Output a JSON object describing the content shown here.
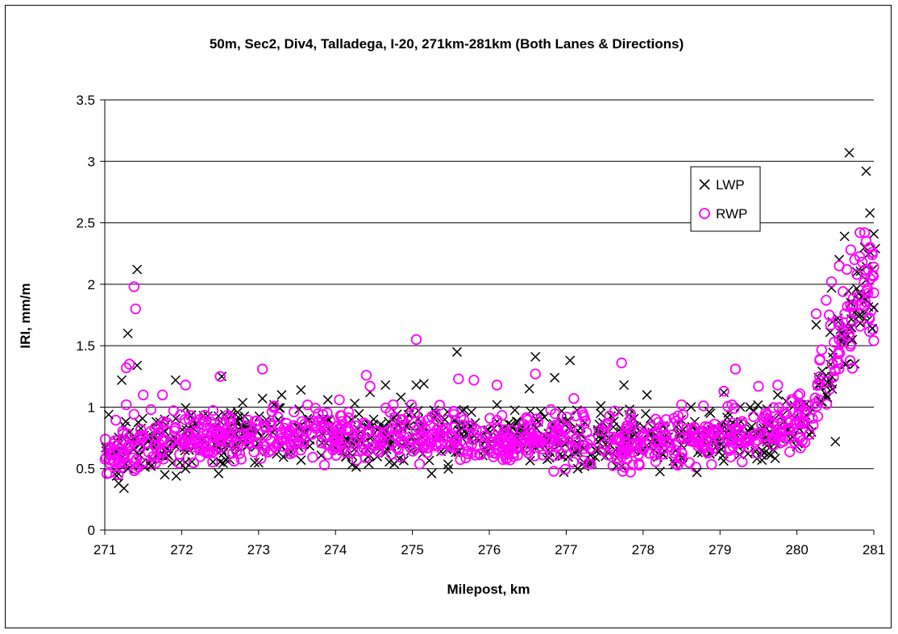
{
  "chart_data": {
    "type": "scatter",
    "title": "50m, Sec2, Div4, Talladega, I-20, 271km-281km (Both Lanes & Directions)",
    "xlabel": "Milepost, km",
    "ylabel": "IRI, mm/m",
    "xlim": [
      271,
      281
    ],
    "ylim": [
      0,
      3.5
    ],
    "x_ticks": [
      "271",
      "272",
      "273",
      "274",
      "275",
      "276",
      "277",
      "278",
      "279",
      "280",
      "281"
    ],
    "y_ticks": [
      "0",
      "0.5",
      "1",
      "1.5",
      "2",
      "2.5",
      "3",
      "3.5"
    ],
    "grid": "horizontal",
    "legend_position": "top-right",
    "series": [
      {
        "name": "LWP",
        "marker": "x",
        "color": "#000000",
        "outliers": [
          [
            271.05,
            0.94
          ],
          [
            271.22,
            1.22
          ],
          [
            271.3,
            1.6
          ],
          [
            271.42,
            2.12
          ],
          [
            271.42,
            1.34
          ],
          [
            271.18,
            0.38
          ],
          [
            271.25,
            0.34
          ],
          [
            271.6,
            0.52
          ],
          [
            271.78,
            0.45
          ],
          [
            271.92,
            1.22
          ],
          [
            271.93,
            0.44
          ],
          [
            272.05,
            0.5
          ],
          [
            272.48,
            0.46
          ],
          [
            272.52,
            1.25
          ],
          [
            273.05,
            1.07
          ],
          [
            272.95,
            0.55
          ],
          [
            273.2,
            1.02
          ],
          [
            273.3,
            1.1
          ],
          [
            273.55,
            1.14
          ],
          [
            273.9,
            1.06
          ],
          [
            274.25,
            1.03
          ],
          [
            274.45,
            1.12
          ],
          [
            274.65,
            1.18
          ],
          [
            274.85,
            1.08
          ],
          [
            275.15,
            1.19
          ],
          [
            275.05,
            1.18
          ],
          [
            275.25,
            0.46
          ],
          [
            275.58,
            1.45
          ],
          [
            276.1,
            1.02
          ],
          [
            276.52,
            1.15
          ],
          [
            276.6,
            1.41
          ],
          [
            276.85,
            1.24
          ],
          [
            277.05,
            1.38
          ],
          [
            277.15,
            0.5
          ],
          [
            277.45,
            1.01
          ],
          [
            277.75,
            1.18
          ],
          [
            278.05,
            1.1
          ],
          [
            278.7,
            0.47
          ],
          [
            279.05,
            1.12
          ],
          [
            279.75,
            1.1
          ],
          [
            280.25,
            1.67
          ],
          [
            280.4,
            1.2
          ],
          [
            280.45,
            1.97
          ],
          [
            280.55,
            2.2
          ],
          [
            280.62,
            2.39
          ],
          [
            280.68,
            3.07
          ],
          [
            280.78,
            2.1
          ],
          [
            280.9,
            2.92
          ],
          [
            280.95,
            2.58
          ],
          [
            281.0,
            2.41
          ],
          [
            280.98,
            1.64
          ],
          [
            281.0,
            1.81
          ],
          [
            280.72,
            1.55
          ],
          [
            280.82,
            1.75
          ],
          [
            280.5,
            0.72
          ],
          [
            280.88,
            2.3
          ],
          [
            281.02,
            2.29
          ],
          [
            280.58,
            1.6
          ],
          [
            280.7,
            1.85
          ]
        ]
      },
      {
        "name": "RWP",
        "marker": "circle",
        "color": "#ff00ff",
        "outliers": [
          [
            271.38,
            1.98
          ],
          [
            271.4,
            1.8
          ],
          [
            271.32,
            1.35
          ],
          [
            271.28,
            1.32
          ],
          [
            271.28,
            1.02
          ],
          [
            271.5,
            1.1
          ],
          [
            271.6,
            0.98
          ],
          [
            271.75,
            1.1
          ],
          [
            272.05,
            1.18
          ],
          [
            272.5,
            1.25
          ],
          [
            273.05,
            1.31
          ],
          [
            273.2,
            1.01
          ],
          [
            274.05,
            1.06
          ],
          [
            274.4,
            1.26
          ],
          [
            274.45,
            1.17
          ],
          [
            274.75,
            1.02
          ],
          [
            275.05,
            1.55
          ],
          [
            275.6,
            1.23
          ],
          [
            275.8,
            1.22
          ],
          [
            276.1,
            1.18
          ],
          [
            276.6,
            1.27
          ],
          [
            276.8,
            0.98
          ],
          [
            277.1,
            1.07
          ],
          [
            277.72,
            1.36
          ],
          [
            278.5,
            1.02
          ],
          [
            279.05,
            1.13
          ],
          [
            279.2,
            1.31
          ],
          [
            279.5,
            1.17
          ],
          [
            279.75,
            1.18
          ],
          [
            280.25,
            1.76
          ],
          [
            280.3,
            1.39
          ],
          [
            280.38,
            1.87
          ],
          [
            280.42,
            1.75
          ],
          [
            280.45,
            2.02
          ],
          [
            280.55,
            2.15
          ],
          [
            280.6,
            1.94
          ],
          [
            280.65,
            2.12
          ],
          [
            280.7,
            2.28
          ],
          [
            280.75,
            2.2
          ],
          [
            280.82,
            2.42
          ],
          [
            280.88,
            2.42
          ],
          [
            280.9,
            2.35
          ],
          [
            280.95,
            2.3
          ],
          [
            280.98,
            2.26
          ],
          [
            281.0,
            2.14
          ],
          [
            281.0,
            1.93
          ],
          [
            281.0,
            1.54
          ],
          [
            280.85,
            2.18
          ],
          [
            280.78,
            2.08
          ],
          [
            280.6,
            1.62
          ],
          [
            280.5,
            1.3
          ],
          [
            280.55,
            1.55
          ],
          [
            280.68,
            1.6
          ],
          [
            280.72,
            1.82
          ],
          [
            280.8,
            1.9
          ]
        ]
      }
    ],
    "bulk_distribution": {
      "note_free": "",
      "x_range": [
        271.0,
        281.0
      ],
      "y_typical_range": [
        0.45,
        1.05
      ],
      "y_center_by_km": [
        [
          271.0,
          0.6
        ],
        [
          271.3,
          0.68
        ],
        [
          272.0,
          0.74
        ],
        [
          273.0,
          0.78
        ],
        [
          274.0,
          0.76
        ],
        [
          275.0,
          0.76
        ],
        [
          276.0,
          0.75
        ],
        [
          277.0,
          0.74
        ],
        [
          278.0,
          0.72
        ],
        [
          279.0,
          0.75
        ],
        [
          279.8,
          0.82
        ],
        [
          280.2,
          0.95
        ],
        [
          280.5,
          1.5
        ],
        [
          281.0,
          2.0
        ]
      ]
    }
  }
}
